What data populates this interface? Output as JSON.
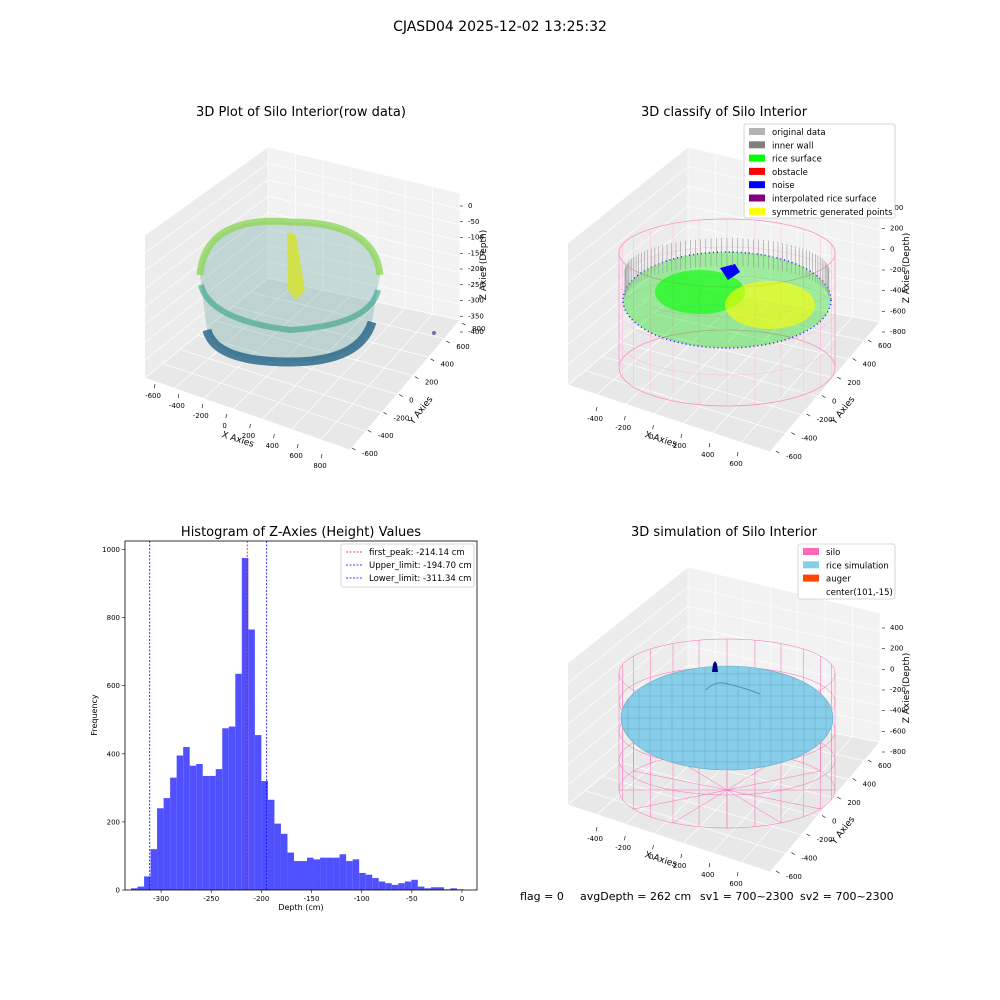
{
  "suptitle": "CJASD04 2025-12-02 13:25:32",
  "panel1": {
    "title": "3D Plot of Silo Interior(row data)",
    "xlabel": "X Axies",
    "ylabel": "Y Axies",
    "zlabel": "Z Axies (Depth)",
    "xticks": [
      "-600",
      "-400",
      "-200",
      "0",
      "200",
      "400",
      "600",
      "800"
    ],
    "yticks": [
      "-600",
      "-400",
      "-200",
      "0",
      "200",
      "400",
      "600",
      "800"
    ],
    "zticks": [
      "0",
      "-50",
      "-100",
      "-150",
      "-200",
      "-250",
      "-300",
      "-350",
      "-400"
    ]
  },
  "panel2": {
    "title": "3D classify of Silo Interior",
    "xlabel": "X Axies",
    "ylabel": "Y Axies",
    "zlabel": "Z Axies (Depth)",
    "xticks": [
      "-400",
      "-200",
      "0",
      "200",
      "400",
      "600"
    ],
    "yticks": [
      "-600",
      "-400",
      "-200",
      "0",
      "200",
      "400",
      "600"
    ],
    "zticks": [
      "400",
      "200",
      "0",
      "-200",
      "-400",
      "-600",
      "-800"
    ],
    "legend": [
      {
        "label": "original data",
        "color": "#b3b3b3"
      },
      {
        "label": "inner wall",
        "color": "#808080"
      },
      {
        "label": "rice surface",
        "color": "#00ff00"
      },
      {
        "label": "obstacle",
        "color": "#ff0000"
      },
      {
        "label": "noise",
        "color": "#0000ff"
      },
      {
        "label": "interpolated rice surface",
        "color": "#800080"
      },
      {
        "label": "symmetric generated points",
        "color": "#ffff00"
      }
    ]
  },
  "panel3": {
    "title": "Histogram of Z-Axies (Height) Values",
    "xlabel": "Depth (cm)",
    "ylabel": "Frequency",
    "legend": [
      {
        "label": "first_peak: -214.14 cm",
        "color": "#ff0000"
      },
      {
        "label": "Upper_limit: -194.70 cm",
        "color": "#0000ff"
      },
      {
        "label": "Lower_limit: -311.34 cm",
        "color": "#0000ff"
      }
    ]
  },
  "panel4": {
    "title": "3D simulation of Silo Interior",
    "xlabel": "X Axies",
    "ylabel": "Y Axies",
    "zlabel": "Z Axies (Depth)",
    "xticks": [
      "-400",
      "-200",
      "0",
      "200",
      "400",
      "600"
    ],
    "yticks": [
      "-600",
      "-400",
      "-200",
      "0",
      "200",
      "400",
      "600"
    ],
    "zticks": [
      "400",
      "200",
      "0",
      "-200",
      "-400",
      "-600",
      "-800"
    ],
    "legend": [
      {
        "label": "silo",
        "color": "#ff69b4"
      },
      {
        "label": "rice simulation",
        "color": "#87ceeb"
      },
      {
        "label": "auger",
        "color": "#ff4500"
      },
      {
        "label": "center(101,-15)",
        "color": ""
      }
    ]
  },
  "footer": {
    "flag": "flag = 0",
    "avg": "avgDepth = 262 cm",
    "sv1": "sv1 = 700~2300",
    "sv2": "sv2 = 700~2300"
  },
  "chart_data": [
    {
      "type": "bar",
      "title": "Histogram of Z-Axies (Height) Values",
      "xlabel": "Depth (cm)",
      "ylabel": "Frequency",
      "xlim": [
        -336,
        15
      ],
      "ylim": [
        0,
        1025
      ],
      "xticks": [
        -300,
        -250,
        -200,
        -150,
        -100,
        -50,
        0
      ],
      "yticks": [
        0,
        200,
        400,
        600,
        800,
        1000
      ],
      "bin_width": 6.5,
      "bin_start": -330,
      "values": [
        5,
        10,
        40,
        120,
        240,
        270,
        330,
        395,
        420,
        365,
        370,
        335,
        335,
        355,
        475,
        480,
        635,
        975,
        765,
        455,
        320,
        265,
        195,
        165,
        110,
        85,
        85,
        95,
        90,
        95,
        95,
        95,
        105,
        85,
        90,
        50,
        45,
        35,
        25,
        20,
        15,
        20,
        25,
        30,
        10,
        5,
        8,
        8,
        2,
        5,
        2
      ],
      "vlines": [
        {
          "name": "first_peak",
          "x": -214.14,
          "color": "#ff0000"
        },
        {
          "name": "Upper_limit",
          "x": -194.7,
          "color": "#0000ff"
        },
        {
          "name": "Lower_limit",
          "x": -311.34,
          "color": "#0000ff"
        }
      ],
      "bar_color": "#4c4cff"
    }
  ]
}
